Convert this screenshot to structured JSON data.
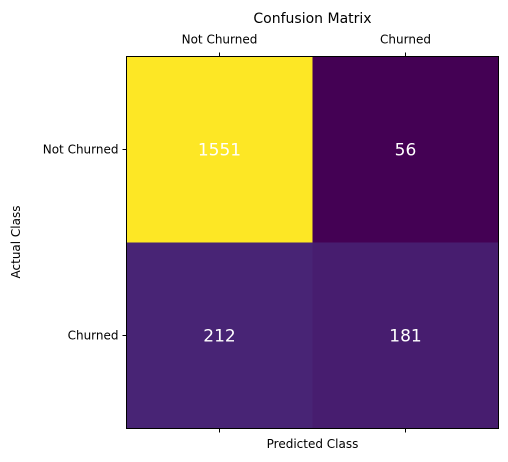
{
  "chart_data": {
    "type": "heatmap",
    "title": "Confusion Matrix",
    "xlabel": "Predicted Class",
    "ylabel": "Actual Class",
    "x_categories": [
      "Not Churned",
      "Churned"
    ],
    "y_categories": [
      "Not Churned",
      "Churned"
    ],
    "values": [
      [
        1551,
        56
      ],
      [
        212,
        181
      ]
    ],
    "colormap": "viridis",
    "x_tick_labels_position": "top",
    "grid": false,
    "colors": {
      "cell_text": "#ffffff",
      "axis": "#000000",
      "background": "#ffffff"
    }
  }
}
